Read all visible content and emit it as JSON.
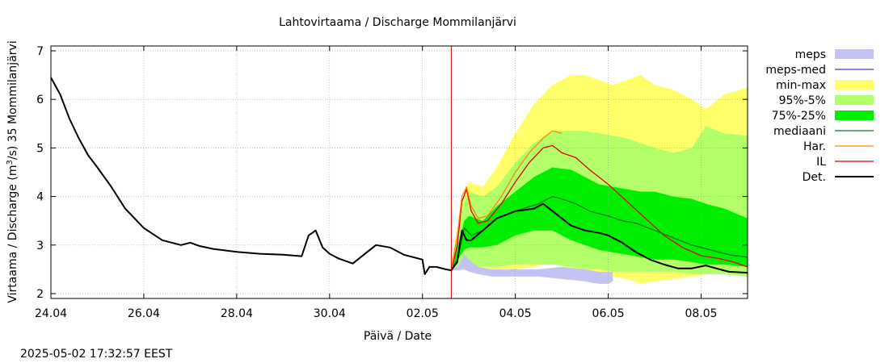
{
  "chart_data": {
    "type": "area",
    "title": "Lahtovirtaama / Discharge  Mommilanjärvi",
    "xlabel": "Päivä / Date",
    "ylabel_prefix": "Virtaama / Discharge (m",
    "ylabel_sup": "3",
    "ylabel_suffix": "/s)  35 Mommilanjärvi",
    "timestamp": "2025-05-02 17:32:57 EEST",
    "x_unit": "days since 24.04",
    "xlim": [
      0,
      15.0
    ],
    "ylim": [
      1.9,
      7.1
    ],
    "grid": true,
    "forecast_start": 8.62,
    "x_ticks": [
      {
        "x": 0,
        "label": "24.04"
      },
      {
        "x": 2,
        "label": "26.04"
      },
      {
        "x": 4,
        "label": "28.04"
      },
      {
        "x": 6,
        "label": "30.04"
      },
      {
        "x": 8,
        "label": "02.05"
      },
      {
        "x": 10,
        "label": "04.05"
      },
      {
        "x": 12,
        "label": "06.05"
      },
      {
        "x": 14,
        "label": "08.05"
      }
    ],
    "y_ticks": [
      {
        "y": 2,
        "label": "2"
      },
      {
        "y": 3,
        "label": "3"
      },
      {
        "y": 4,
        "label": "4"
      },
      {
        "y": 5,
        "label": "5"
      },
      {
        "y": 6,
        "label": "6"
      },
      {
        "y": 7,
        "label": "7"
      }
    ],
    "colors": {
      "meps": "#c4c4f4",
      "meps_med": "#3a3acf",
      "minmax": "#ffff6a",
      "p95_5": "#b2ff6a",
      "p75_25": "#00ee00",
      "mediaani": "#117711",
      "har": "#ff8800",
      "il": "#e00000",
      "det": "#000000",
      "forecast_line": "#cc0000",
      "grid": "#a0a0a0"
    },
    "legend": [
      {
        "key": "meps",
        "label": "meps",
        "style": "band"
      },
      {
        "key": "meps_med",
        "label": "meps-med",
        "style": "line"
      },
      {
        "key": "minmax",
        "label": "min-max",
        "style": "band"
      },
      {
        "key": "p95_5",
        "label": "95%-5%",
        "style": "band"
      },
      {
        "key": "p75_25",
        "label": "75%-25%",
        "style": "band"
      },
      {
        "key": "mediaani",
        "label": "mediaani",
        "style": "line"
      },
      {
        "key": "har",
        "label": "Har.",
        "style": "line"
      },
      {
        "key": "il",
        "label": "IL",
        "style": "line"
      },
      {
        "key": "det",
        "label": "Det.",
        "style": "line"
      }
    ],
    "bands": {
      "minmax": {
        "x": [
          8.62,
          8.9,
          9.0,
          9.3,
          9.6,
          10.0,
          10.4,
          10.8,
          11.2,
          11.5,
          11.8,
          12.1,
          12.4,
          12.7,
          13.0,
          13.4,
          13.8,
          14.1,
          14.5,
          15.0
        ],
        "upper": [
          2.6,
          4.1,
          4.3,
          4.2,
          4.6,
          5.3,
          5.9,
          6.3,
          6.5,
          6.5,
          6.4,
          6.3,
          6.4,
          6.5,
          6.3,
          6.2,
          6.0,
          5.8,
          6.1,
          6.25
        ],
        "lower": [
          2.5,
          2.5,
          2.5,
          2.5,
          2.5,
          2.5,
          2.55,
          2.65,
          2.5,
          2.45,
          2.4,
          2.35,
          2.3,
          2.2,
          2.25,
          2.3,
          2.35,
          2.4,
          2.4,
          2.4
        ]
      },
      "p95_5": {
        "x": [
          8.62,
          8.9,
          9.0,
          9.3,
          9.6,
          10.0,
          10.4,
          10.8,
          11.2,
          11.5,
          11.8,
          12.1,
          12.4,
          12.7,
          13.0,
          13.4,
          13.8,
          14.1,
          14.5,
          15.0
        ],
        "upper": [
          2.55,
          3.9,
          4.1,
          4.0,
          4.2,
          4.7,
          5.1,
          5.35,
          5.35,
          5.35,
          5.3,
          5.25,
          5.2,
          5.1,
          5.0,
          4.9,
          5.0,
          5.45,
          5.3,
          5.25
        ],
        "lower": [
          2.52,
          2.55,
          2.55,
          2.55,
          2.55,
          2.6,
          2.6,
          2.6,
          2.55,
          2.5,
          2.5,
          2.45,
          2.45,
          2.45,
          2.45,
          2.45,
          2.4,
          2.4,
          2.4,
          2.35
        ]
      },
      "p75_25": {
        "x": [
          8.62,
          8.9,
          9.0,
          9.3,
          9.6,
          10.0,
          10.4,
          10.8,
          11.2,
          11.5,
          11.8,
          12.1,
          12.4,
          12.7,
          13.0,
          13.4,
          13.8,
          14.1,
          14.5,
          15.0
        ],
        "upper": [
          2.52,
          3.5,
          3.6,
          3.5,
          3.8,
          4.1,
          4.4,
          4.6,
          4.55,
          4.4,
          4.25,
          4.2,
          4.15,
          4.1,
          4.1,
          4.0,
          3.95,
          3.85,
          3.75,
          3.55
        ],
        "lower": [
          2.5,
          2.9,
          2.95,
          2.95,
          3.0,
          3.2,
          3.3,
          3.3,
          3.1,
          3.0,
          2.9,
          2.85,
          2.8,
          2.75,
          2.7,
          2.7,
          2.65,
          2.6,
          2.6,
          2.55
        ]
      },
      "meps": {
        "x": [
          8.62,
          8.75,
          8.9,
          9.0,
          9.2,
          9.5,
          10.0,
          10.5,
          11.0,
          11.5,
          11.8,
          12.0,
          12.1
        ],
        "upper": [
          2.5,
          2.55,
          2.8,
          2.7,
          2.55,
          2.5,
          2.5,
          2.5,
          2.55,
          2.5,
          2.45,
          2.45,
          2.45
        ],
        "lower": [
          2.48,
          2.48,
          2.5,
          2.45,
          2.4,
          2.35,
          2.35,
          2.35,
          2.3,
          2.25,
          2.2,
          2.2,
          2.25
        ]
      }
    },
    "series": [
      {
        "key": "det",
        "name": "Det.",
        "width": 2,
        "x": [
          0,
          0.2,
          0.4,
          0.6,
          0.8,
          1.0,
          1.3,
          1.6,
          2.0,
          2.4,
          2.8,
          3.0,
          3.2,
          3.5,
          4.0,
          4.5,
          5.0,
          5.4,
          5.55,
          5.7,
          5.85,
          6.0,
          6.2,
          6.5,
          6.8,
          7.0,
          7.3,
          7.6,
          8.0,
          8.05,
          8.15,
          8.3,
          8.5,
          8.62,
          8.75,
          8.85,
          8.95,
          9.05,
          9.3,
          9.6,
          10.0,
          10.4,
          10.6,
          10.8,
          11.0,
          11.2,
          11.5,
          11.8,
          12.0,
          12.3,
          12.6,
          12.9,
          13.2,
          13.5,
          13.8,
          14.1,
          14.4,
          14.6,
          14.8,
          15.0
        ],
        "y": [
          6.45,
          6.1,
          5.6,
          5.2,
          4.85,
          4.6,
          4.2,
          3.75,
          3.35,
          3.1,
          3.0,
          3.05,
          2.98,
          2.92,
          2.86,
          2.82,
          2.8,
          2.77,
          3.2,
          3.3,
          2.95,
          2.82,
          2.72,
          2.62,
          2.85,
          3.0,
          2.95,
          2.8,
          2.7,
          2.4,
          2.55,
          2.55,
          2.5,
          2.48,
          2.65,
          3.3,
          3.1,
          3.1,
          3.3,
          3.55,
          3.7,
          3.75,
          3.85,
          3.7,
          3.55,
          3.4,
          3.3,
          3.25,
          3.2,
          3.05,
          2.85,
          2.7,
          2.6,
          2.52,
          2.52,
          2.58,
          2.5,
          2.45,
          2.44,
          2.43
        ]
      },
      {
        "key": "mediaani",
        "name": "mediaani",
        "width": 1.3,
        "x": [
          8.62,
          8.75,
          8.9,
          9.05,
          9.3,
          9.6,
          10.0,
          10.5,
          10.8,
          11.0,
          11.3,
          11.6,
          12.0,
          12.3,
          12.6,
          13.0,
          13.4,
          13.8,
          14.2,
          14.6,
          15.0
        ],
        "y": [
          2.5,
          2.7,
          3.35,
          3.2,
          3.3,
          3.55,
          3.7,
          3.85,
          4.0,
          3.95,
          3.85,
          3.7,
          3.6,
          3.5,
          3.45,
          3.3,
          3.15,
          3.0,
          2.9,
          2.8,
          2.75
        ]
      },
      {
        "key": "har",
        "name": "Har.",
        "width": 1.3,
        "x": [
          8.62,
          8.75,
          8.85,
          8.95,
          9.05,
          9.2,
          9.4,
          9.7,
          10.0,
          10.3,
          10.6,
          10.8,
          11.0
        ],
        "y": [
          2.5,
          3.2,
          4.0,
          4.2,
          3.8,
          3.55,
          3.6,
          4.0,
          4.5,
          4.9,
          5.2,
          5.35,
          5.3
        ]
      },
      {
        "key": "il",
        "name": "IL",
        "width": 1.3,
        "x": [
          8.62,
          8.75,
          8.85,
          8.95,
          9.05,
          9.2,
          9.4,
          9.7,
          10.0,
          10.3,
          10.6,
          10.8,
          11.0,
          11.3,
          11.6,
          12.0,
          12.4,
          12.8,
          13.2,
          13.6,
          14.0,
          14.4,
          14.7,
          15.0
        ],
        "y": [
          2.45,
          3.0,
          3.9,
          4.15,
          3.7,
          3.45,
          3.5,
          3.85,
          4.3,
          4.7,
          5.0,
          5.05,
          4.9,
          4.8,
          4.55,
          4.25,
          3.9,
          3.55,
          3.2,
          2.95,
          2.78,
          2.72,
          2.65,
          2.55
        ]
      }
    ]
  }
}
